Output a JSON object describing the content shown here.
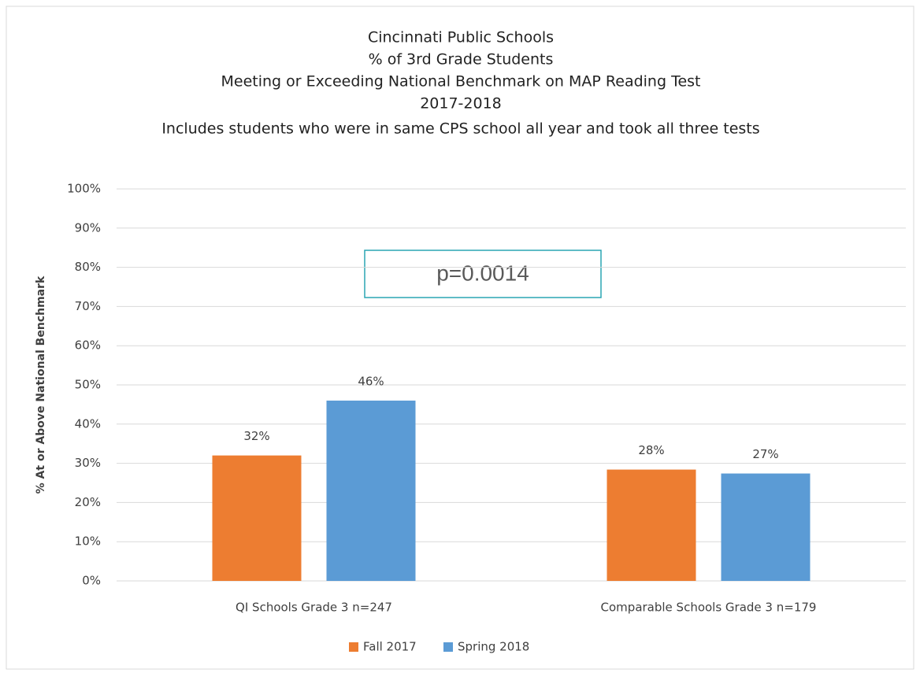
{
  "chart_data": {
    "type": "bar",
    "title": [
      "Cincinnati Public Schools",
      "% of 3rd Grade Students",
      "Meeting or Exceeding National Benchmark on MAP Reading Test",
      "2017-2018",
      "Includes students who were in same CPS school all year and took all three tests"
    ],
    "ylabel": "% At or Above National Benchmark",
    "annotation": "p=0.0014",
    "categories": [
      "QI Schools Grade 3  n=247",
      "Comparable Schools Grade 3 n=179"
    ],
    "series": [
      {
        "name": "Fall 2017",
        "color": "#ed7d31",
        "values": [
          32,
          28.4
        ],
        "value_labels": [
          "32%",
          "28%"
        ]
      },
      {
        "name": "Spring 2018",
        "color": "#5b9bd5",
        "values": [
          46,
          27.4
        ],
        "value_labels": [
          "46%",
          "27%"
        ]
      }
    ],
    "ylim": [
      0,
      100
    ],
    "yticks": [
      {
        "value": 0,
        "label": "0%"
      },
      {
        "value": 10,
        "label": "10%"
      },
      {
        "value": 20,
        "label": "20%"
      },
      {
        "value": 30,
        "label": "30%"
      },
      {
        "value": 40,
        "label": "40%"
      },
      {
        "value": 50,
        "label": "50%"
      },
      {
        "value": 60,
        "label": "60%"
      },
      {
        "value": 70,
        "label": "70%"
      },
      {
        "value": 80,
        "label": "80%"
      },
      {
        "value": 90,
        "label": "90%"
      },
      {
        "value": 100,
        "label": "100%"
      }
    ],
    "grid": true,
    "legend": "bottom"
  }
}
